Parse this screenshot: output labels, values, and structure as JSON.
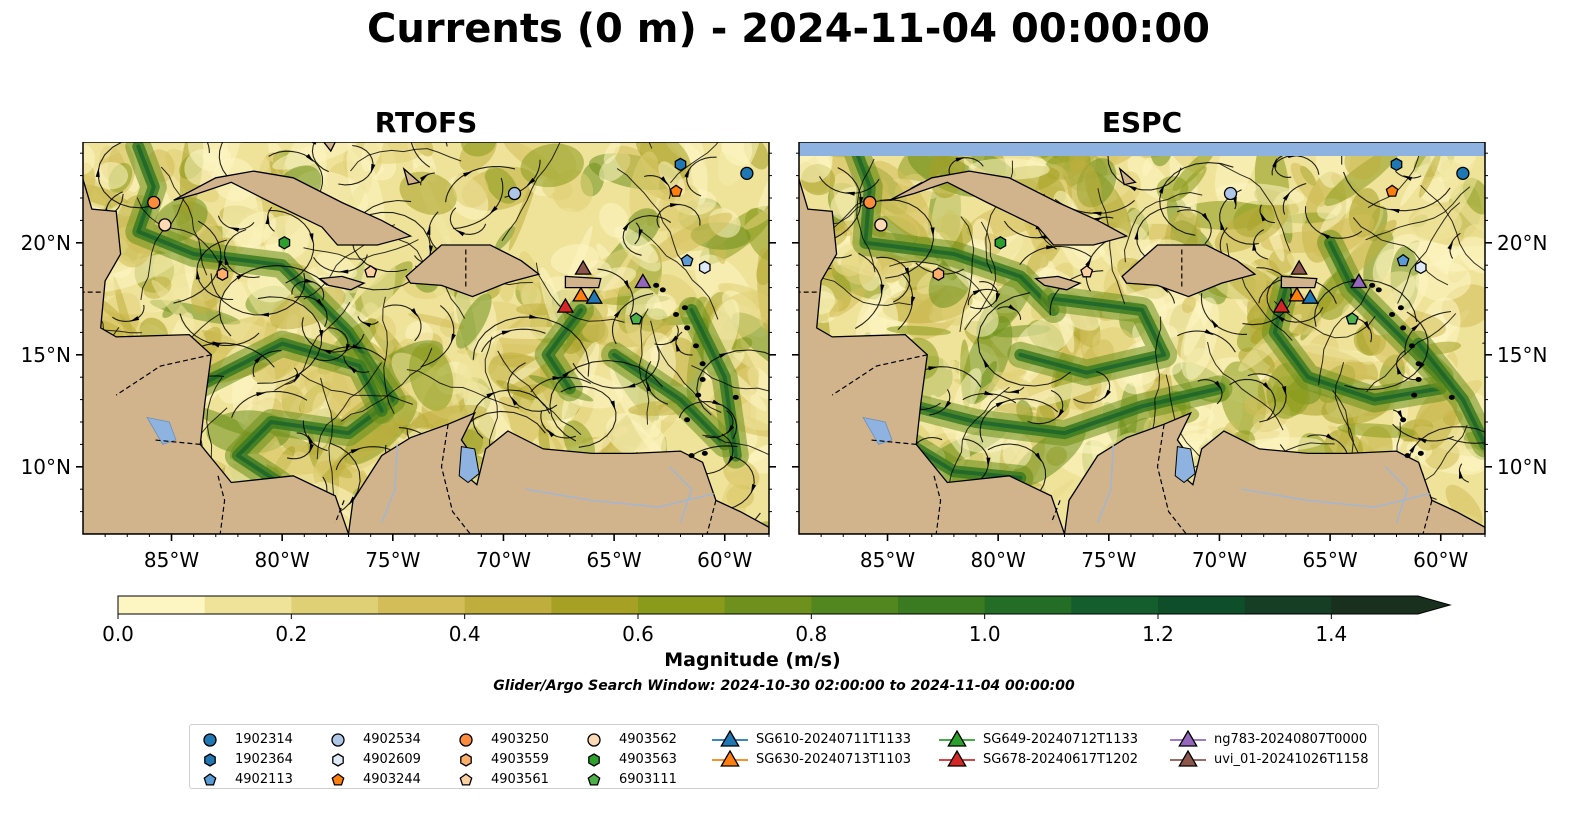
{
  "title": "Currents (0 m) - 2024-11-04 00:00:00",
  "panels": [
    {
      "title": "RTOFS"
    },
    {
      "title": "ESPC"
    }
  ],
  "x_ticks": [
    "85°W",
    "80°W",
    "75°W",
    "70°W",
    "65°W",
    "60°W"
  ],
  "y_ticks": [
    "20°N",
    "15°N",
    "10°N"
  ],
  "colorbar": {
    "label": "Magnitude (m/s)",
    "ticks": [
      "0.0",
      "0.2",
      "0.4",
      "0.6",
      "0.8",
      "1.0",
      "1.2",
      "1.4"
    ],
    "range": [
      0,
      1.5
    ],
    "extend": "max",
    "colors": [
      "#fdf6c3",
      "#efe39a",
      "#e0d075",
      "#d2bd58",
      "#bfae3e",
      "#a6a125",
      "#8a9a1b",
      "#6e901c",
      "#52861e",
      "#3a7a21",
      "#246d27",
      "#135e2c",
      "#0e4f2a",
      "#153e25",
      "#19301f"
    ]
  },
  "search_window": "Glider/Argo Search Window: 2024-10-30 02:00:00 to 2024-11-04 00:00:00",
  "legend": [
    {
      "label": "1902314",
      "marker": "circle",
      "color": "#1f77b4"
    },
    {
      "label": "1902364",
      "marker": "hexagon",
      "color": "#1f77b4"
    },
    {
      "label": "4902113",
      "marker": "pentagon",
      "color": "#5b9bd5"
    },
    {
      "label": "4902534",
      "marker": "circle",
      "color": "#aec7e8"
    },
    {
      "label": "4902609",
      "marker": "hexagon",
      "color": "#deebf7"
    },
    {
      "label": "4903244",
      "marker": "pentagon",
      "color": "#ff7f0e"
    },
    {
      "label": "4903250",
      "marker": "circle",
      "color": "#fd8d3c"
    },
    {
      "label": "4903559",
      "marker": "hexagon",
      "color": "#fdae6b"
    },
    {
      "label": "4903561",
      "marker": "pentagon",
      "color": "#fdd0a2"
    },
    {
      "label": "4903562",
      "marker": "circle",
      "color": "#fdd9b5"
    },
    {
      "label": "4903563",
      "marker": "hexagon",
      "color": "#2ca02c"
    },
    {
      "label": "6903111",
      "marker": "pentagon",
      "color": "#4daf4a"
    },
    {
      "label": "SG610-20240711T1133",
      "marker": "triangle",
      "color": "#1f77b4"
    },
    {
      "label": "SG630-20240713T1103",
      "marker": "triangle",
      "color": "#ff7f0e"
    },
    {
      "label": "SG649-20240712T1133",
      "marker": "triangle",
      "color": "#2ca02c"
    },
    {
      "label": "SG678-20240617T1202",
      "marker": "triangle",
      "color": "#d62728"
    },
    {
      "label": "ng783-20240807T0000",
      "marker": "triangle",
      "color": "#9467bd"
    },
    {
      "label": "uvi_01-20241026T1158",
      "marker": "triangle",
      "color": "#8c564b"
    }
  ],
  "chart_data": {
    "type": "heatmap",
    "variable": "surface current magnitude",
    "units": "m/s",
    "xlim": [
      -89,
      -58
    ],
    "ylim": [
      7,
      24.5
    ],
    "colorbar_range": [
      0,
      1.5
    ],
    "platforms_rtofs": [
      {
        "label": "1902314",
        "lon": -59,
        "lat": 23.1
      },
      {
        "label": "1902364",
        "lon": -62,
        "lat": 23.5
      },
      {
        "label": "4903244",
        "lon": -62.2,
        "lat": 22.3
      },
      {
        "label": "4902534",
        "lon": -69.5,
        "lat": 22.2
      },
      {
        "label": "4903250",
        "lon": -85.8,
        "lat": 21.8
      },
      {
        "label": "4903562",
        "lon": -85.3,
        "lat": 20.8
      },
      {
        "label": "4903563",
        "lon": -79.9,
        "lat": 20.0
      },
      {
        "label": "4903559",
        "lon": -82.7,
        "lat": 18.6
      },
      {
        "label": "4903561",
        "lon": -76.0,
        "lat": 18.7
      },
      {
        "label": "4902609",
        "lon": -60.9,
        "lat": 18.9
      },
      {
        "label": "4902113",
        "lon": -61.7,
        "lat": 19.2
      },
      {
        "label": "6903111",
        "lon": -64.0,
        "lat": 16.6
      },
      {
        "label": "uvi_01-20241026T1158",
        "lon": -66.4,
        "lat": 18.8
      },
      {
        "label": "ng783-20240807T0000",
        "lon": -63.7,
        "lat": 18.2
      },
      {
        "label": "SG630-20240713T1103",
        "lon": -66.5,
        "lat": 17.6
      },
      {
        "label": "SG610-20240711T1133",
        "lon": -65.9,
        "lat": 17.5
      },
      {
        "label": "SG678-20240617T1202",
        "lon": -67.2,
        "lat": 17.1
      }
    ],
    "platforms_espc": [
      {
        "label": "1902314",
        "lon": -59,
        "lat": 23.1
      },
      {
        "label": "1902364",
        "lon": -62,
        "lat": 23.5
      },
      {
        "label": "4903244",
        "lon": -62.2,
        "lat": 22.3
      },
      {
        "label": "4902534",
        "lon": -69.5,
        "lat": 22.2
      },
      {
        "label": "4903250",
        "lon": -85.8,
        "lat": 21.8
      },
      {
        "label": "4903562",
        "lon": -85.3,
        "lat": 20.8
      },
      {
        "label": "4903563",
        "lon": -79.9,
        "lat": 20.0
      },
      {
        "label": "4903559",
        "lon": -82.7,
        "lat": 18.6
      },
      {
        "label": "4903561",
        "lon": -76.0,
        "lat": 18.7
      },
      {
        "label": "4902609",
        "lon": -60.9,
        "lat": 18.9
      },
      {
        "label": "4902113",
        "lon": -61.7,
        "lat": 19.2
      },
      {
        "label": "6903111",
        "lon": -64.0,
        "lat": 16.6
      },
      {
        "label": "uvi_01-20241026T1158",
        "lon": -66.4,
        "lat": 18.8
      },
      {
        "label": "ng783-20240807T0000",
        "lon": -63.7,
        "lat": 18.2
      },
      {
        "label": "SG630-20240713T1103",
        "lon": -66.5,
        "lat": 17.6
      },
      {
        "label": "SG610-20240711T1133",
        "lon": -65.9,
        "lat": 17.5
      },
      {
        "label": "SG678-20240617T1202",
        "lon": -67.2,
        "lat": 17.1
      }
    ]
  }
}
